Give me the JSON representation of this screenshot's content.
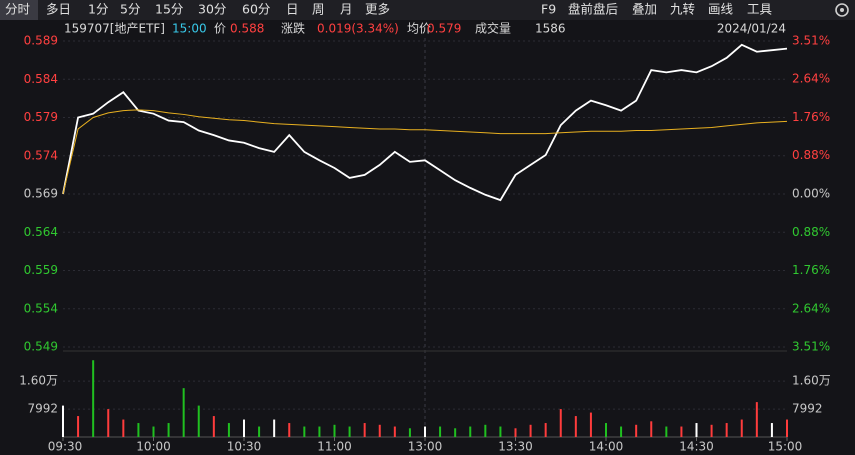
{
  "toolbar": {
    "left": [
      "分时",
      "多日",
      "1分",
      "5分",
      "15分",
      "30分",
      "60分",
      "日",
      "周",
      "月",
      "更多"
    ],
    "right": [
      "F9",
      "盘前盘后",
      "叠加",
      "九转",
      "画线",
      "工具"
    ]
  },
  "info": {
    "code": "159707[地产ETF]",
    "time": "15:00",
    "price_label": "价",
    "price": "0.588",
    "change_label": "涨跌",
    "change": "0.019(3.34%)",
    "avg_label": "均价",
    "avg": "0.579",
    "volume_label": "成交量",
    "volume": "1586",
    "date": "2024/01/24"
  },
  "chart_data": [
    {
      "type": "line",
      "x": [
        "09:30",
        "09:35",
        "09:40",
        "09:45",
        "09:50",
        "09:55",
        "10:00",
        "10:05",
        "10:10",
        "10:15",
        "10:20",
        "10:25",
        "10:30",
        "10:35",
        "10:40",
        "10:45",
        "10:50",
        "10:55",
        "11:00",
        "11:05",
        "11:10",
        "11:15",
        "11:20",
        "11:25",
        "13:00",
        "13:05",
        "13:10",
        "13:15",
        "13:20",
        "13:25",
        "13:30",
        "13:35",
        "13:40",
        "13:45",
        "13:50",
        "13:55",
        "14:00",
        "14:05",
        "14:10",
        "14:15",
        "14:20",
        "14:25",
        "14:30",
        "14:35",
        "14:40",
        "14:45",
        "14:50",
        "14:55",
        "15:00"
      ],
      "series": [
        {
          "color": "#ffffff",
          "values": [
            0.569,
            0.579,
            0.5795,
            0.581,
            0.5823,
            0.5799,
            0.5795,
            0.5786,
            0.5784,
            0.5773,
            0.5767,
            0.576,
            0.5757,
            0.575,
            0.5745,
            0.5767,
            0.5745,
            0.5734,
            0.5724,
            0.5711,
            0.5715,
            0.5728,
            0.5745,
            0.5732,
            0.5734,
            0.5721,
            0.5708,
            0.5698,
            0.5689,
            0.5682,
            0.5715,
            0.5728,
            0.5741,
            0.578,
            0.5799,
            0.5812,
            0.5806,
            0.5799,
            0.5812,
            0.5852,
            0.5849,
            0.5852,
            0.5849,
            0.5857,
            0.5868,
            0.5885,
            0.5876,
            0.5878,
            0.588
          ]
        },
        {
          "color": "#e8b020",
          "values": [
            0.569,
            0.5775,
            0.579,
            0.5796,
            0.5799,
            0.58,
            0.5799,
            0.5796,
            0.5794,
            0.5791,
            0.5789,
            0.5787,
            0.5786,
            0.5784,
            0.5782,
            0.5781,
            0.578,
            0.5779,
            0.5778,
            0.5777,
            0.5776,
            0.5775,
            0.5775,
            0.5774,
            0.5774,
            0.5773,
            0.5772,
            0.5771,
            0.577,
            0.5769,
            0.5769,
            0.5769,
            0.5769,
            0.577,
            0.5771,
            0.5772,
            0.5772,
            0.5772,
            0.5773,
            0.5773,
            0.5774,
            0.5775,
            0.5776,
            0.5777,
            0.5779,
            0.5781,
            0.5783,
            0.5784,
            0.5785
          ]
        }
      ],
      "ylim": [
        0.549,
        0.589
      ],
      "yticks": [
        0.589,
        0.584,
        0.579,
        0.574,
        0.569,
        0.564,
        0.559,
        0.554,
        0.549
      ],
      "y2lim": [
        -3.51,
        3.51
      ],
      "y2ticks": [
        {
          "value": 3.51,
          "label": "3.51%"
        },
        {
          "value": 2.64,
          "label": "2.64%"
        },
        {
          "value": 1.76,
          "label": "1.76%"
        },
        {
          "value": 0.88,
          "label": "0.88%"
        },
        {
          "value": 0,
          "label": "0.00%"
        },
        {
          "value": -0.88,
          "label": "0.88%"
        },
        {
          "value": -1.76,
          "label": "1.76%"
        },
        {
          "value": -2.64,
          "label": "2.64%"
        },
        {
          "value": -3.51,
          "label": "3.51%"
        }
      ],
      "grid": true
    },
    {
      "type": "bar",
      "x": [
        "09:30",
        "09:35",
        "09:40",
        "09:45",
        "09:50",
        "09:55",
        "10:00",
        "10:05",
        "10:10",
        "10:15",
        "10:20",
        "10:25",
        "10:30",
        "10:35",
        "10:40",
        "10:45",
        "10:50",
        "10:55",
        "11:00",
        "11:05",
        "11:10",
        "11:15",
        "11:20",
        "11:25",
        "13:00",
        "13:05",
        "13:10",
        "13:15",
        "13:20",
        "13:25",
        "13:30",
        "13:35",
        "13:40",
        "13:45",
        "13:50",
        "13:55",
        "14:00",
        "14:05",
        "14:10",
        "14:15",
        "14:20",
        "14:25",
        "14:30",
        "14:35",
        "14:40",
        "14:45",
        "14:50",
        "14:55",
        "15:00"
      ],
      "values": [
        9000,
        6000,
        22000,
        8000,
        5000,
        4000,
        3000,
        4000,
        14000,
        9000,
        6000,
        4000,
        5000,
        3000,
        5000,
        4000,
        3000,
        3000,
        3500,
        3000,
        4000,
        3500,
        3000,
        2500,
        3000,
        3000,
        2500,
        3000,
        3500,
        3000,
        2500,
        3500,
        4000,
        8000,
        6000,
        7000,
        4000,
        3000,
        3500,
        4500,
        3000,
        3000,
        4000,
        3500,
        4000,
        5000,
        10000,
        4000,
        5000
      ],
      "colors": [
        "#ffffff",
        "#ff3c3c",
        "#20c020",
        "#ff3c3c",
        "#ff3c3c",
        "#20c020",
        "#20c020",
        "#20c020",
        "#20c020",
        "#20c020",
        "#ff3c3c",
        "#20c020",
        "#ffffff",
        "#20c020",
        "#ffffff",
        "#ff3c3c",
        "#20c020",
        "#20c020",
        "#20c020",
        "#20c020",
        "#ff3c3c",
        "#ff3c3c",
        "#ff3c3c",
        "#20c020",
        "#ffffff",
        "#20c020",
        "#20c020",
        "#20c020",
        "#20c020",
        "#20c020",
        "#ff3c3c",
        "#ff3c3c",
        "#ff3c3c",
        "#ff3c3c",
        "#ff3c3c",
        "#ff3c3c",
        "#20c020",
        "#20c020",
        "#ff3c3c",
        "#ff3c3c",
        "#20c020",
        "#ff3c3c",
        "#ffffff",
        "#ff3c3c",
        "#ff3c3c",
        "#ff3c3c",
        "#ff3c3c",
        "#ffffff",
        "#ff3c3c"
      ],
      "ylim": [
        0,
        23500
      ],
      "yticks": [
        {
          "value": 16000,
          "label": "1.60万"
        },
        7992
      ],
      "xticks": [
        "09:30",
        "10:00",
        "10:30",
        "11:00",
        "13:00",
        "13:30",
        "14:00",
        "14:30",
        "15:00"
      ]
    }
  ]
}
